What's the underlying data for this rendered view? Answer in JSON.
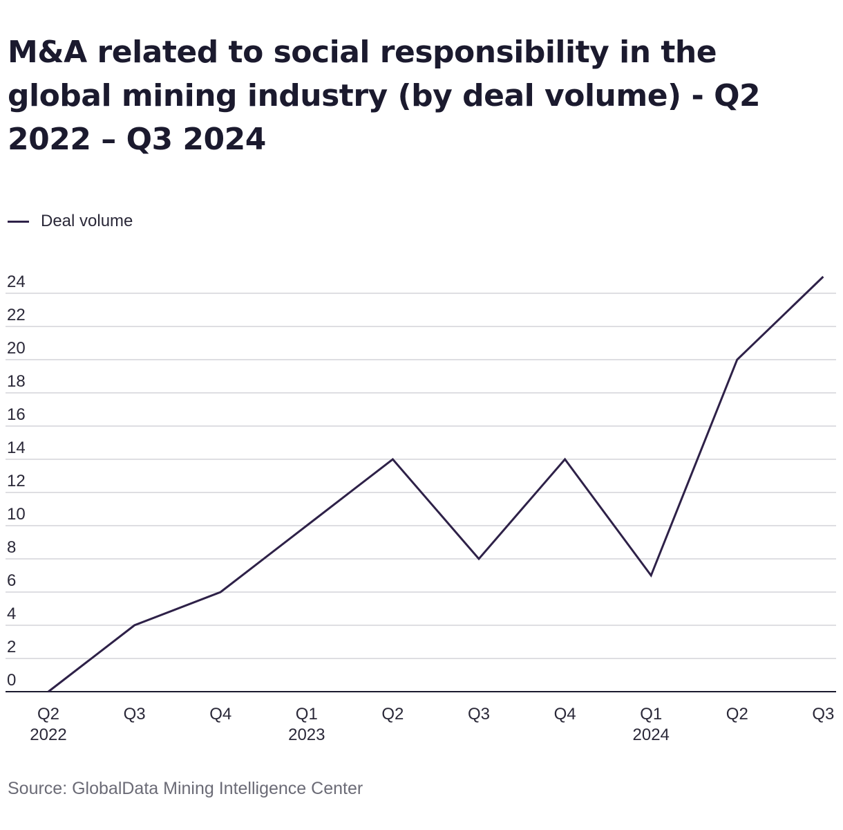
{
  "chart_data": {
    "type": "line",
    "title": "M&A related to social responsibility in the global mining industry (by deal volume) - Q2 2022 – Q3 2024",
    "categories": [
      {
        "quarter": "Q2",
        "year": "2022"
      },
      {
        "quarter": "Q3",
        "year": ""
      },
      {
        "quarter": "Q4",
        "year": ""
      },
      {
        "quarter": "Q1",
        "year": "2023"
      },
      {
        "quarter": "Q2",
        "year": ""
      },
      {
        "quarter": "Q3",
        "year": ""
      },
      {
        "quarter": "Q4",
        "year": ""
      },
      {
        "quarter": "Q1",
        "year": "2024"
      },
      {
        "quarter": "Q2",
        "year": ""
      },
      {
        "quarter": "Q3",
        "year": ""
      }
    ],
    "series": [
      {
        "name": "Deal volume",
        "values": [
          0,
          4,
          6,
          10,
          14,
          8,
          14,
          7,
          20,
          25
        ],
        "color": "#2e2148"
      }
    ],
    "yticks": [
      "0",
      "2",
      "4",
      "6",
      "8",
      "10",
      "12",
      "14",
      "16",
      "18",
      "20",
      "22",
      "24"
    ],
    "ylim": [
      0,
      25
    ],
    "grid": true,
    "legend_position": "top-left"
  },
  "source": "Source: GlobalData Mining Intelligence Center",
  "watermark": "GlobalData"
}
